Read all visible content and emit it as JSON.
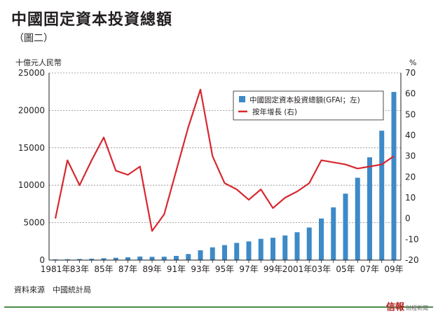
{
  "header": {
    "title": "中國固定資本投資總額",
    "subtitle": "（圖二）"
  },
  "source": "資料來源　中國統計局",
  "brand": {
    "name": "信報",
    "tagline": "財經新聞"
  },
  "chart_data": {
    "type": "bar+line",
    "left_axis_label": "十億元人民幣",
    "right_axis_label": "%",
    "ylim_left": [
      0,
      25000
    ],
    "ylim_right": [
      -20,
      70
    ],
    "left_ticks": [
      0,
      5000,
      10000,
      15000,
      20000,
      25000
    ],
    "right_ticks": [
      -20,
      -10,
      0,
      10,
      20,
      30,
      40,
      50,
      60,
      70
    ],
    "years": [
      1981,
      1982,
      1983,
      1984,
      1985,
      1986,
      1987,
      1988,
      1989,
      1990,
      1991,
      1992,
      1993,
      1994,
      1995,
      1996,
      1997,
      1998,
      1999,
      2000,
      2001,
      2002,
      2003,
      2004,
      2005,
      2006,
      2007,
      2008,
      2009
    ],
    "x_tick_labels": [
      "1981年",
      "83年",
      "85年",
      "87年",
      "89年",
      "91年",
      "93年",
      "95年",
      "97年",
      "99年",
      "2001年",
      "03年",
      "05年",
      "07年",
      "09年"
    ],
    "grid": true,
    "legend_position": "top-right",
    "colors": {
      "bar": "#3d8ac7",
      "line": "#d7282f"
    },
    "series": [
      {
        "name": "中國固定資本投資總額(GFAI；左)",
        "type": "bar",
        "axis": "left",
        "values": [
          96,
          123,
          143,
          183,
          254,
          312,
          379,
          475,
          441,
          452,
          559,
          808,
          1307,
          1704,
          2002,
          2297,
          2494,
          2840,
          2985,
          3292,
          3721,
          4350,
          5557,
          7048,
          8877,
          10999,
          13732,
          17283,
          22460
        ]
      },
      {
        "name": "按年增長 (右)",
        "type": "line",
        "axis": "right",
        "values": [
          0,
          28,
          16,
          28,
          39,
          23,
          21,
          25,
          -6,
          2,
          23,
          44,
          62,
          30,
          17,
          14,
          9,
          14,
          5,
          10,
          13,
          17,
          28,
          27,
          26,
          24,
          25,
          26,
          30
        ]
      }
    ]
  }
}
